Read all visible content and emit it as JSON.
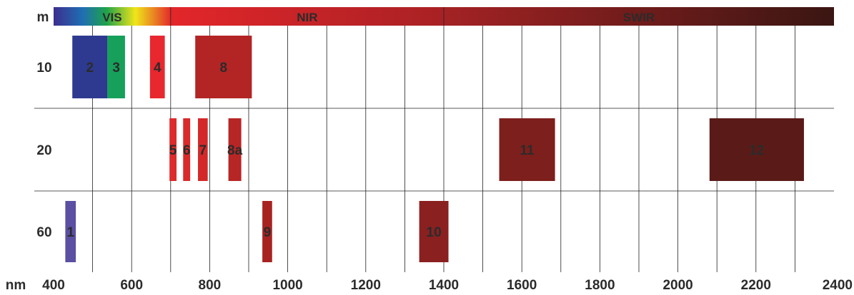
{
  "chart_data": {
    "type": "bar",
    "x_unit_label": "nm",
    "y_unit_label": "m",
    "x_ticks": [
      400,
      600,
      800,
      1000,
      1200,
      1400,
      1600,
      1800,
      2000,
      2200,
      2400
    ],
    "xlim": [
      400,
      2400
    ],
    "resolutions": [
      10,
      20,
      60
    ],
    "spectral_regions": [
      {
        "name": "VIS",
        "range": [
          400,
          700
        ]
      },
      {
        "name": "NIR",
        "range": [
          700,
          1400
        ]
      },
      {
        "name": "SWIR",
        "range": [
          1400,
          2400
        ]
      }
    ],
    "bands": [
      {
        "label": "1",
        "range": [
          430,
          457
        ],
        "resolution": 60,
        "color": "#5a4fa3"
      },
      {
        "label": "2",
        "range": [
          448,
          538
        ],
        "resolution": 10,
        "color": "#2e3a8f"
      },
      {
        "label": "3",
        "range": [
          538,
          583
        ],
        "resolution": 10,
        "color": "#16a05a"
      },
      {
        "label": "4",
        "range": [
          647,
          685
        ],
        "resolution": 10,
        "color": "#e8272e"
      },
      {
        "label": "5",
        "range": [
          697,
          715
        ],
        "resolution": 20,
        "color": "#dd2a2a"
      },
      {
        "label": "6",
        "range": [
          732,
          750
        ],
        "resolution": 20,
        "color": "#d92929"
      },
      {
        "label": "7",
        "range": [
          770,
          795
        ],
        "resolution": 20,
        "color": "#d42828"
      },
      {
        "label": "8",
        "range": [
          763,
          908
        ],
        "resolution": 10,
        "color": "#b32424"
      },
      {
        "label": "8a",
        "range": [
          848,
          881
        ],
        "resolution": 20,
        "color": "#b82525"
      },
      {
        "label": "9",
        "range": [
          935,
          960
        ],
        "resolution": 60,
        "color": "#a82222"
      },
      {
        "label": "10",
        "range": [
          1337,
          1412
        ],
        "resolution": 60,
        "color": "#8a2020"
      },
      {
        "label": "11",
        "range": [
          1542,
          1685
        ],
        "resolution": 20,
        "color": "#7d1f1c"
      },
      {
        "label": "12",
        "range": [
          2081,
          2323
        ],
        "resolution": 20,
        "color": "#5a1b18"
      }
    ]
  }
}
